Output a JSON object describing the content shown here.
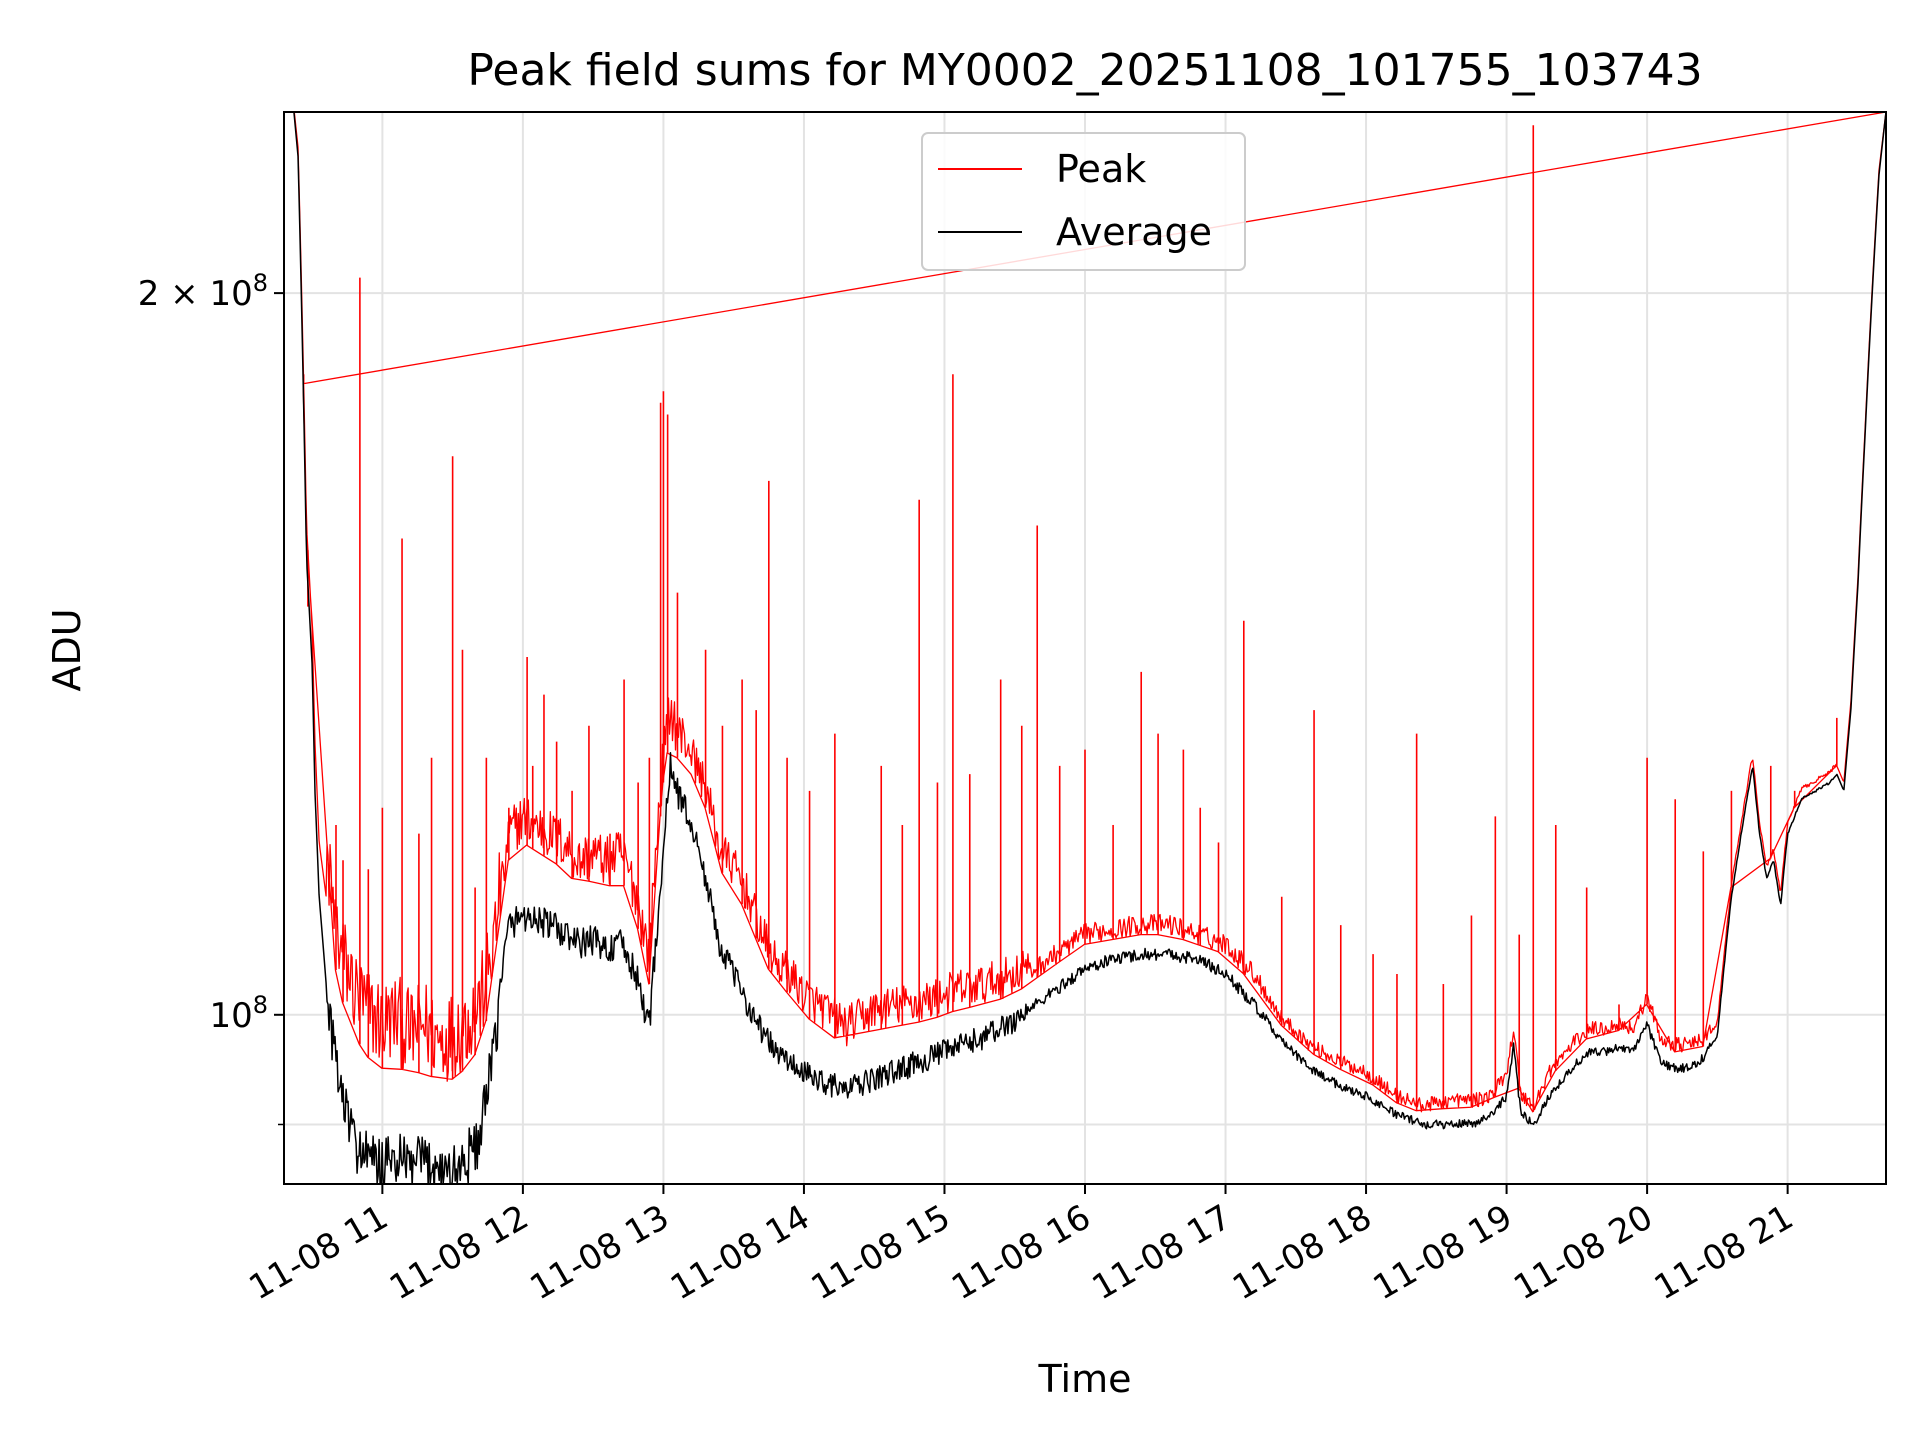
{
  "chart_data": {
    "type": "line",
    "title": "Peak field sums for MY0002_20251108_101755_103743",
    "xlabel": "Time",
    "ylabel": "ADU",
    "yscale": "log",
    "xlim": [
      10.3,
      21.7
    ],
    "ylim": [
      85000000,
      238000000
    ],
    "grid": true,
    "legend_position": "top-center",
    "x_ticks": [
      {
        "value": 11,
        "label": "11-08 11"
      },
      {
        "value": 12,
        "label": "11-08 12"
      },
      {
        "value": 13,
        "label": "11-08 13"
      },
      {
        "value": 14,
        "label": "11-08 14"
      },
      {
        "value": 15,
        "label": "11-08 15"
      },
      {
        "value": 16,
        "label": "11-08 16"
      },
      {
        "value": 17,
        "label": "11-08 17"
      },
      {
        "value": 18,
        "label": "11-08 18"
      },
      {
        "value": 19,
        "label": "11-08 19"
      },
      {
        "value": 20,
        "label": "11-08 20"
      },
      {
        "value": 21,
        "label": "11-08 21"
      }
    ],
    "y_ticks": [
      {
        "value": 100000000,
        "base": "10",
        "exp": "8",
        "coef": ""
      },
      {
        "value": 200000000,
        "base": "10",
        "exp": "8",
        "coef": "2 × "
      }
    ],
    "y_minor_ticks": [
      90000000
    ],
    "series": [
      {
        "name": "Peak",
        "color": "#ff0000",
        "x": [
          10.35,
          10.4,
          10.46,
          10.5,
          10.52,
          10.55,
          10.6,
          10.65,
          10.7,
          10.8,
          10.9,
          11.0,
          11.1,
          11.2,
          11.3,
          11.4,
          11.5,
          11.6,
          11.7,
          11.8,
          11.85,
          11.9,
          12.0,
          12.1,
          12.2,
          12.3,
          12.4,
          12.5,
          12.6,
          12.7,
          12.8,
          12.9,
          12.95,
          13.0,
          13.05,
          13.1,
          13.2,
          13.3,
          13.4,
          13.5,
          13.6,
          13.7,
          13.8,
          13.9,
          14.0,
          14.1,
          14.2,
          14.3,
          14.5,
          14.7,
          14.9,
          15.0,
          15.1,
          15.3,
          15.5,
          15.7,
          15.9,
          16.0,
          16.2,
          16.4,
          16.6,
          16.8,
          17.0,
          17.2,
          17.4,
          17.6,
          17.8,
          18.0,
          18.2,
          18.4,
          18.6,
          18.8,
          18.9,
          19.0,
          19.05,
          19.1,
          19.2,
          19.3,
          19.4,
          19.5,
          19.6,
          19.7,
          19.8,
          19.9,
          20.0,
          20.1,
          20.2,
          20.3,
          20.4,
          20.5,
          20.6,
          20.7,
          20.75,
          20.8,
          20.85,
          20.9,
          20.95,
          21.0,
          21.1,
          21.2,
          21.3,
          21.35,
          21.4,
          21.45,
          21.5,
          21.55,
          21.6,
          21.65,
          21.7
        ],
        "values": [
          245000000,
          230000000,
          160000000,
          145000000,
          130000000,
          118000000,
          112000000,
          106000000,
          102000000,
          98000000,
          96000000,
          95000000,
          95500000,
          94000000,
          95000000,
          93500000,
          94000000,
          95000000,
          97000000,
          103000000,
          110000000,
          116000000,
          118000000,
          117000000,
          116000000,
          115000000,
          113000000,
          114000000,
          113000000,
          114000000,
          110000000,
          103000000,
          115000000,
          125000000,
          131000000,
          128000000,
          126000000,
          122000000,
          115000000,
          113000000,
          110000000,
          106000000,
          103000000,
          102000000,
          100000000,
          99000000,
          98000000,
          97000000,
          98500000,
          99000000,
          99500000,
          100000000,
          100500000,
          101000000,
          102000000,
          104000000,
          106000000,
          107000000,
          107500000,
          108000000,
          108000000,
          107000000,
          106000000,
          103000000,
          99000000,
          96500000,
          95000000,
          94000000,
          92000000,
          91000000,
          91500000,
          91500000,
          92000000,
          94000000,
          98000000,
          92000000,
          91000000,
          94000000,
          95500000,
          97000000,
          98000000,
          98000000,
          98500000,
          98000000,
          101000000,
          97000000,
          96500000,
          96500000,
          97000000,
          99000000,
          113000000,
          123000000,
          128000000,
          120000000,
          115000000,
          117000000,
          112000000,
          120000000,
          124000000,
          125000000,
          126000000,
          127000000,
          125000000,
          135000000,
          152000000,
          175000000,
          200000000,
          225000000,
          238000000
        ],
        "spikes": [
          [
            10.44,
            185000000
          ],
          [
            10.47,
            148000000
          ],
          [
            10.67,
            120000000
          ],
          [
            10.72,
            116000000
          ],
          [
            10.84,
            203000000
          ],
          [
            10.9,
            115000000
          ],
          [
            11.0,
            122000000
          ],
          [
            11.14,
            158000000
          ],
          [
            11.26,
            119000000
          ],
          [
            11.35,
            128000000
          ],
          [
            11.5,
            171000000
          ],
          [
            11.57,
            142000000
          ],
          [
            11.66,
            113000000
          ],
          [
            11.74,
            128000000
          ],
          [
            11.9,
            122000000
          ],
          [
            12.03,
            141000000
          ],
          [
            12.07,
            127000000
          ],
          [
            12.15,
            136000000
          ],
          [
            12.24,
            130000000
          ],
          [
            12.35,
            124000000
          ],
          [
            12.47,
            132000000
          ],
          [
            12.62,
            119000000
          ],
          [
            12.72,
            138000000
          ],
          [
            12.82,
            125000000
          ],
          [
            12.9,
            128000000
          ],
          [
            12.98,
            180000000
          ],
          [
            13.0,
            182000000
          ],
          [
            13.03,
            178000000
          ],
          [
            13.1,
            150000000
          ],
          [
            13.2,
            126000000
          ],
          [
            13.3,
            142000000
          ],
          [
            13.42,
            132000000
          ],
          [
            13.56,
            138000000
          ],
          [
            13.66,
            134000000
          ],
          [
            13.75,
            167000000
          ],
          [
            13.88,
            128000000
          ],
          [
            14.04,
            124000000
          ],
          [
            14.22,
            131000000
          ],
          [
            14.55,
            127000000
          ],
          [
            14.7,
            120000000
          ],
          [
            14.82,
            164000000
          ],
          [
            14.95,
            125000000
          ],
          [
            15.06,
            185000000
          ],
          [
            15.18,
            126000000
          ],
          [
            15.4,
            138000000
          ],
          [
            15.55,
            132000000
          ],
          [
            15.66,
            160000000
          ],
          [
            15.82,
            127000000
          ],
          [
            16.0,
            129000000
          ],
          [
            16.2,
            120000000
          ],
          [
            16.4,
            139000000
          ],
          [
            16.52,
            131000000
          ],
          [
            16.7,
            129000000
          ],
          [
            16.82,
            122000000
          ],
          [
            16.95,
            118000000
          ],
          [
            17.13,
            146000000
          ],
          [
            17.4,
            112000000
          ],
          [
            17.63,
            134000000
          ],
          [
            17.82,
            109000000
          ],
          [
            18.05,
            106000000
          ],
          [
            18.22,
            104000000
          ],
          [
            18.36,
            131000000
          ],
          [
            18.55,
            103000000
          ],
          [
            18.75,
            110000000
          ],
          [
            18.92,
            121000000
          ],
          [
            19.09,
            108000000
          ],
          [
            19.19,
            235000000
          ],
          [
            19.35,
            120000000
          ],
          [
            19.57,
            113000000
          ],
          [
            19.8,
            101000000
          ],
          [
            20.0,
            128000000
          ],
          [
            20.2,
            123000000
          ],
          [
            20.4,
            117000000
          ],
          [
            20.6,
            124000000
          ],
          [
            20.88,
            127000000
          ],
          [
            21.05,
            124000000
          ],
          [
            21.35,
            133000000
          ]
        ]
      },
      {
        "name": "Average",
        "color": "#000000",
        "x": [
          10.35,
          10.4,
          10.46,
          10.5,
          10.52,
          10.55,
          10.6,
          10.65,
          10.7,
          10.8,
          10.9,
          11.0,
          11.1,
          11.2,
          11.3,
          11.4,
          11.5,
          11.6,
          11.7,
          11.8,
          11.85,
          11.9,
          12.0,
          12.1,
          12.2,
          12.3,
          12.4,
          12.5,
          12.6,
          12.7,
          12.8,
          12.9,
          12.95,
          13.0,
          13.05,
          13.1,
          13.2,
          13.3,
          13.4,
          13.5,
          13.6,
          13.7,
          13.8,
          13.9,
          14.0,
          14.1,
          14.2,
          14.3,
          14.5,
          14.7,
          14.9,
          15.0,
          15.1,
          15.3,
          15.5,
          15.7,
          15.9,
          16.0,
          16.2,
          16.4,
          16.6,
          16.8,
          17.0,
          17.2,
          17.4,
          17.6,
          17.8,
          18.0,
          18.2,
          18.4,
          18.6,
          18.8,
          18.9,
          19.0,
          19.05,
          19.1,
          19.2,
          19.3,
          19.4,
          19.5,
          19.6,
          19.7,
          19.8,
          19.9,
          20.0,
          20.1,
          20.2,
          20.3,
          20.4,
          20.5,
          20.6,
          20.7,
          20.75,
          20.8,
          20.85,
          20.9,
          20.95,
          21.0,
          21.1,
          21.2,
          21.3,
          21.35,
          21.4,
          21.45,
          21.5,
          21.55,
          21.6,
          21.65,
          21.7
        ],
        "values": [
          245000000,
          228000000,
          155000000,
          140000000,
          124000000,
          112000000,
          103000000,
          97000000,
          93000000,
          88500000,
          87000000,
          86500000,
          87000000,
          86500000,
          86800000,
          86500000,
          86000000,
          87000000,
          89000000,
          97000000,
          104000000,
          109000000,
          110000000,
          109500000,
          109000000,
          108000000,
          107000000,
          107500000,
          106500000,
          107000000,
          104000000,
          99000000,
          108000000,
          117000000,
          127000000,
          124000000,
          120000000,
          114000000,
          107000000,
          104000000,
          101000000,
          98500000,
          96500000,
          95500000,
          94500000,
          94000000,
          93500000,
          93000000,
          94000000,
          95000000,
          96000000,
          96500000,
          97000000,
          98000000,
          99500000,
          101500000,
          103500000,
          104500000,
          105500000,
          106000000,
          106000000,
          105500000,
          104000000,
          101000000,
          97500000,
          95000000,
          93500000,
          92500000,
          91000000,
          90000000,
          90000000,
          90200000,
          91000000,
          92500000,
          97000000,
          91000000,
          90000000,
          92500000,
          94000000,
          95500000,
          96500000,
          96500000,
          97000000,
          96500000,
          99000000,
          95500000,
          95000000,
          95000000,
          96000000,
          98000000,
          112000000,
          122000000,
          127000000,
          119000000,
          114000000,
          116000000,
          111000000,
          119000000,
          123000000,
          124000000,
          125000000,
          126000000,
          124000000,
          134000000,
          151000000,
          174000000,
          199000000,
          224000000,
          238000000
        ]
      }
    ]
  }
}
